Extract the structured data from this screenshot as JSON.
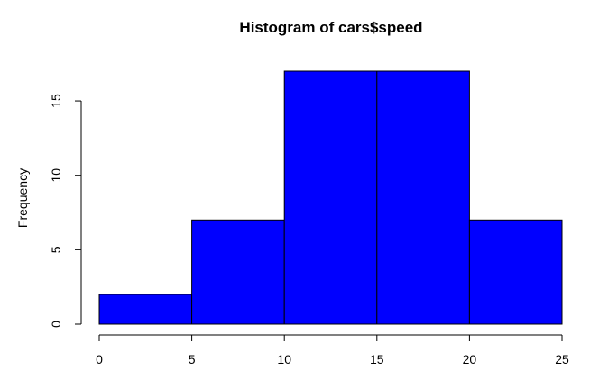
{
  "chart_data": {
    "type": "bar",
    "subtype": "histogram",
    "title": "Histogram of cars$speed",
    "xlabel": "",
    "ylabel": "Frequency",
    "bins": [
      {
        "start": 0,
        "end": 5,
        "value": 2
      },
      {
        "start": 5,
        "end": 10,
        "value": 7
      },
      {
        "start": 10,
        "end": 15,
        "value": 17
      },
      {
        "start": 15,
        "end": 20,
        "value": 17
      },
      {
        "start": 20,
        "end": 25,
        "value": 7
      }
    ],
    "xlim": [
      0,
      25
    ],
    "ylim": [
      0,
      17
    ],
    "xticks": [
      0,
      5,
      10,
      15,
      20,
      25
    ],
    "yticks": [
      0,
      5,
      10,
      15
    ],
    "grid": false,
    "bar_color": "#0000ff",
    "edge_color": "#000000"
  }
}
